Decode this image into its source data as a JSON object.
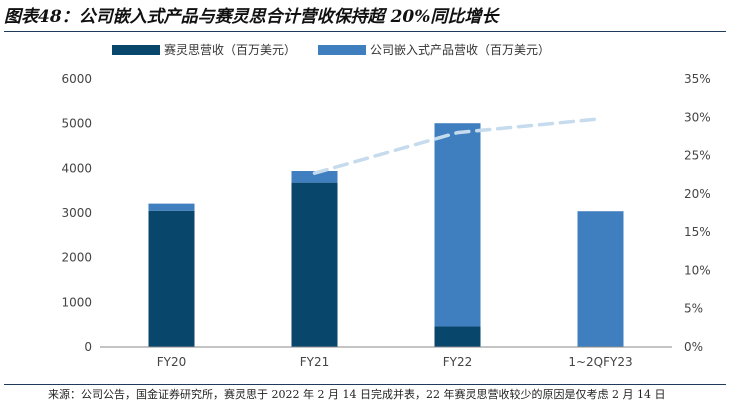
{
  "header": {
    "title": "图表48：公司嵌入式产品与赛灵思合计营收保持超 20%同比增长"
  },
  "footer": {
    "source": "来源：公司公告，国金证券研究所，赛灵思于 2022 年 2 月 14 日完成并表，22 年赛灵思营收较少的原因是仅考虑 2 月 14 日"
  },
  "colors": {
    "xilinx": "#08466c",
    "embedded": "#3f7fbf",
    "yoy": "#c6dbed",
    "axis": "#888888",
    "text": "#444444"
  },
  "chart_data": {
    "type": "bar",
    "stacked": true,
    "categories": [
      "FY20",
      "FY21",
      "FY22",
      "1~2QFY23"
    ],
    "series": [
      {
        "name": "赛灵思营收（百万美元）",
        "type": "bar",
        "axis": "left",
        "color": "#08466c",
        "values": [
          3050,
          3680,
          460,
          0
        ]
      },
      {
        "name": "公司嵌入式产品营收（百万美元）",
        "type": "bar",
        "axis": "left",
        "color": "#3f7fbf",
        "values": [
          160,
          260,
          4550,
          3040
        ]
      },
      {
        "name": "合计YoY",
        "type": "line",
        "axis": "right",
        "style": "dashed",
        "color": "#c6dbed",
        "values": [
          null,
          0.227,
          0.28,
          0.298
        ]
      }
    ],
    "y_left": {
      "min": 0,
      "max": 6000,
      "ticks": [
        0,
        1000,
        2000,
        3000,
        4000,
        5000,
        6000
      ],
      "tick_labels": [
        "0",
        "1000",
        "2000",
        "3000",
        "4000",
        "5000",
        "6000"
      ]
    },
    "y_right": {
      "min": 0,
      "max": 0.35,
      "ticks": [
        0,
        0.05,
        0.1,
        0.15,
        0.2,
        0.25,
        0.3,
        0.35
      ],
      "tick_labels": [
        "0%",
        "5%",
        "10%",
        "15%",
        "20%",
        "25%",
        "30%",
        "35%"
      ]
    },
    "legend": {
      "position": "top"
    },
    "grid": false
  }
}
